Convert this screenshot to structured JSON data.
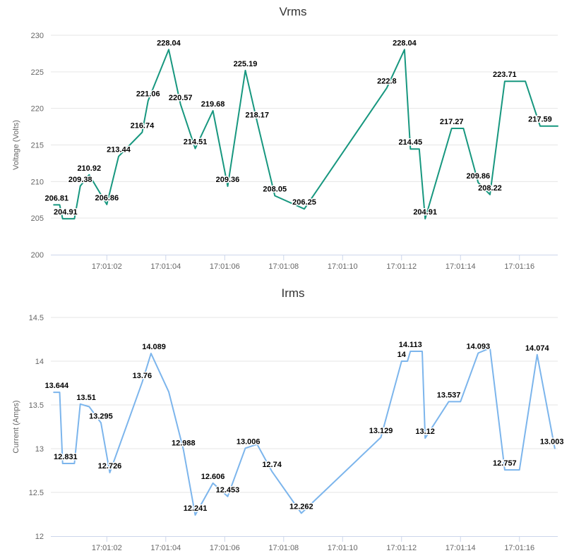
{
  "chart_data": [
    {
      "type": "line",
      "title": "Vrms",
      "ylabel": "Voltage (Volts)",
      "xlabel": "",
      "ylim": [
        200,
        230
      ],
      "yticks": [
        200,
        205,
        210,
        215,
        220,
        225,
        230
      ],
      "xlim": [
        "17:01:00.1",
        "17:01:17.3"
      ],
      "xticks": [
        "17:01:02",
        "17:01:04",
        "17:01:06",
        "17:01:08",
        "17:01:10",
        "17:01:12",
        "17:01:14",
        "17:01:16"
      ],
      "grid": true,
      "color": "#17977f",
      "series": [
        {
          "points": [
            {
              "t": "17:01:00.2",
              "y": 206.81
            },
            {
              "t": "17:01:00.4",
              "y": 206.81
            },
            {
              "t": "17:01:00.5",
              "y": 204.91
            },
            {
              "t": "17:01:00.9",
              "y": 204.91
            },
            {
              "t": "17:01:01.1",
              "y": 209.38
            },
            {
              "t": "17:01:01.4",
              "y": 210.92
            },
            {
              "t": "17:01:02.0",
              "y": 206.86
            },
            {
              "t": "17:01:02.4",
              "y": 213.44
            },
            {
              "t": "17:01:03.2",
              "y": 216.74
            },
            {
              "t": "17:01:03.4",
              "y": 221.06
            },
            {
              "t": "17:01:04.1",
              "y": 228.04
            },
            {
              "t": "17:01:04.5",
              "y": 220.57
            },
            {
              "t": "17:01:05.0",
              "y": 214.51
            },
            {
              "t": "17:01:05.6",
              "y": 219.68
            },
            {
              "t": "17:01:06.1",
              "y": 209.36
            },
            {
              "t": "17:01:06.7",
              "y": 225.19
            },
            {
              "t": "17:01:07.1",
              "y": 218.17
            },
            {
              "t": "17:01:07.7",
              "y": 208.05
            },
            {
              "t": "17:01:08.7",
              "y": 206.25
            },
            {
              "t": "17:01:11.5",
              "y": 222.8
            },
            {
              "t": "17:01:12.1",
              "y": 228.04
            },
            {
              "t": "17:01:12.3",
              "y": 214.45
            },
            {
              "t": "17:01:12.6",
              "y": 214.45
            },
            {
              "t": "17:01:12.8",
              "y": 204.91
            },
            {
              "t": "17:01:13.7",
              "y": 217.27
            },
            {
              "t": "17:01:14.1",
              "y": 217.27
            },
            {
              "t": "17:01:14.6",
              "y": 209.86
            },
            {
              "t": "17:01:15.0",
              "y": 208.22
            },
            {
              "t": "17:01:15.5",
              "y": 223.71
            },
            {
              "t": "17:01:16.2",
              "y": 223.71
            },
            {
              "t": "17:01:16.7",
              "y": 217.59
            },
            {
              "t": "17:01:17.3",
              "y": 217.59
            }
          ],
          "labels": [
            {
              "t": "17:01:00.3",
              "y": 206.81,
              "text": "206.81"
            },
            {
              "t": "17:01:00.6",
              "y": 204.91,
              "text": "204.91"
            },
            {
              "t": "17:01:01.1",
              "y": 209.38,
              "text": "209.38"
            },
            {
              "t": "17:01:01.4",
              "y": 210.92,
              "text": "210.92"
            },
            {
              "t": "17:01:02.0",
              "y": 206.86,
              "text": "206.86"
            },
            {
              "t": "17:01:02.4",
              "y": 213.44,
              "text": "213.44"
            },
            {
              "t": "17:01:03.2",
              "y": 216.74,
              "text": "216.74"
            },
            {
              "t": "17:01:03.4",
              "y": 221.06,
              "text": "221.06"
            },
            {
              "t": "17:01:04.1",
              "y": 228.04,
              "text": "228.04"
            },
            {
              "t": "17:01:04.5",
              "y": 220.57,
              "text": "220.57"
            },
            {
              "t": "17:01:05.0",
              "y": 214.51,
              "text": "214.51"
            },
            {
              "t": "17:01:05.6",
              "y": 219.68,
              "text": "219.68"
            },
            {
              "t": "17:01:06.1",
              "y": 209.36,
              "text": "209.36"
            },
            {
              "t": "17:01:06.7",
              "y": 225.19,
              "text": "225.19"
            },
            {
              "t": "17:01:07.1",
              "y": 218.17,
              "text": "218.17"
            },
            {
              "t": "17:01:07.7",
              "y": 208.05,
              "text": "208.05"
            },
            {
              "t": "17:01:08.7",
              "y": 206.25,
              "text": "206.25"
            },
            {
              "t": "17:01:11.5",
              "y": 222.8,
              "text": "222.8"
            },
            {
              "t": "17:01:12.1",
              "y": 228.04,
              "text": "228.04"
            },
            {
              "t": "17:01:12.3",
              "y": 214.45,
              "text": "214.45"
            },
            {
              "t": "17:01:12.8",
              "y": 204.91,
              "text": "204.91"
            },
            {
              "t": "17:01:13.7",
              "y": 217.27,
              "text": "217.27"
            },
            {
              "t": "17:01:14.6",
              "y": 209.86,
              "text": "209.86"
            },
            {
              "t": "17:01:15.0",
              "y": 208.22,
              "text": "208.22"
            },
            {
              "t": "17:01:15.5",
              "y": 223.71,
              "text": "223.71"
            },
            {
              "t": "17:01:16.7",
              "y": 217.59,
              "text": "217.59"
            }
          ]
        }
      ]
    },
    {
      "type": "line",
      "title": "Irms",
      "ylabel": "Current (Amps)",
      "xlabel": "",
      "ylim": [
        12,
        14.5
      ],
      "yticks": [
        12,
        12.5,
        13,
        13.5,
        14,
        14.5
      ],
      "xlim": [
        "17:01:00.1",
        "17:01:17.3"
      ],
      "xticks": [
        "17:01:02",
        "17:01:04",
        "17:01:06",
        "17:01:08",
        "17:01:10",
        "17:01:12",
        "17:01:14",
        "17:01:16"
      ],
      "grid": true,
      "color": "#7cb5ec",
      "series": [
        {
          "points": [
            {
              "t": "17:01:00.2",
              "y": 13.644
            },
            {
              "t": "17:01:00.4",
              "y": 13.644
            },
            {
              "t": "17:01:00.5",
              "y": 12.831
            },
            {
              "t": "17:01:00.9",
              "y": 12.831
            },
            {
              "t": "17:01:01.1",
              "y": 13.51
            },
            {
              "t": "17:01:01.4",
              "y": 13.48
            },
            {
              "t": "17:01:01.8",
              "y": 13.295
            },
            {
              "t": "17:01:02.1",
              "y": 12.726
            },
            {
              "t": "17:01:03.2",
              "y": 13.76
            },
            {
              "t": "17:01:03.5",
              "y": 14.089
            },
            {
              "t": "17:01:04.1",
              "y": 13.65
            },
            {
              "t": "17:01:04.6",
              "y": 12.988
            },
            {
              "t": "17:01:05.0",
              "y": 12.241
            },
            {
              "t": "17:01:05.6",
              "y": 12.606
            },
            {
              "t": "17:01:06.1",
              "y": 12.453
            },
            {
              "t": "17:01:06.7",
              "y": 13.006
            },
            {
              "t": "17:01:07.1",
              "y": 13.05
            },
            {
              "t": "17:01:07.6",
              "y": 12.74
            },
            {
              "t": "17:01:08.6",
              "y": 12.262
            },
            {
              "t": "17:01:11.3",
              "y": 13.129
            },
            {
              "t": "17:01:12.0",
              "y": 14.0
            },
            {
              "t": "17:01:12.2",
              "y": 14.0
            },
            {
              "t": "17:01:12.3",
              "y": 14.113
            },
            {
              "t": "17:01:12.7",
              "y": 14.113
            },
            {
              "t": "17:01:12.8",
              "y": 13.12
            },
            {
              "t": "17:01:13.6",
              "y": 13.537
            },
            {
              "t": "17:01:14.0",
              "y": 13.537
            },
            {
              "t": "17:01:14.6",
              "y": 14.093
            },
            {
              "t": "17:01:15.0",
              "y": 14.15
            },
            {
              "t": "17:01:15.5",
              "y": 12.757
            },
            {
              "t": "17:01:16.0",
              "y": 12.757
            },
            {
              "t": "17:01:16.6",
              "y": 14.074
            },
            {
              "t": "17:01:17.2",
              "y": 13.003
            }
          ],
          "labels": [
            {
              "t": "17:01:00.3",
              "y": 13.644,
              "text": "13.644"
            },
            {
              "t": "17:01:00.6",
              "y": 12.831,
              "text": "12.831"
            },
            {
              "t": "17:01:01.3",
              "y": 13.51,
              "text": "13.51"
            },
            {
              "t": "17:01:01.8",
              "y": 13.295,
              "text": "13.295"
            },
            {
              "t": "17:01:02.1",
              "y": 12.726,
              "text": "12.726"
            },
            {
              "t": "17:01:03.2",
              "y": 13.76,
              "text": "13.76"
            },
            {
              "t": "17:01:03.6",
              "y": 14.089,
              "text": "14.089"
            },
            {
              "t": "17:01:04.6",
              "y": 12.988,
              "text": "12.988"
            },
            {
              "t": "17:01:05.0",
              "y": 12.241,
              "text": "12.241"
            },
            {
              "t": "17:01:05.6",
              "y": 12.606,
              "text": "12.606"
            },
            {
              "t": "17:01:06.1",
              "y": 12.453,
              "text": "12.453"
            },
            {
              "t": "17:01:06.8",
              "y": 13.006,
              "text": "13.006"
            },
            {
              "t": "17:01:07.6",
              "y": 12.74,
              "text": "12.74"
            },
            {
              "t": "17:01:08.6",
              "y": 12.262,
              "text": "12.262"
            },
            {
              "t": "17:01:11.3",
              "y": 13.129,
              "text": "13.129"
            },
            {
              "t": "17:01:12.0",
              "y": 14.0,
              "text": "14"
            },
            {
              "t": "17:01:12.3",
              "y": 14.113,
              "text": "14.113"
            },
            {
              "t": "17:01:12.8",
              "y": 13.12,
              "text": "13.12"
            },
            {
              "t": "17:01:13.6",
              "y": 13.537,
              "text": "13.537"
            },
            {
              "t": "17:01:14.6",
              "y": 14.093,
              "text": "14.093"
            },
            {
              "t": "17:01:15.5",
              "y": 12.757,
              "text": "12.757"
            },
            {
              "t": "17:01:16.6",
              "y": 14.074,
              "text": "14.074"
            },
            {
              "t": "17:01:17.1",
              "y": 13.003,
              "text": "13.003"
            }
          ]
        }
      ]
    }
  ]
}
